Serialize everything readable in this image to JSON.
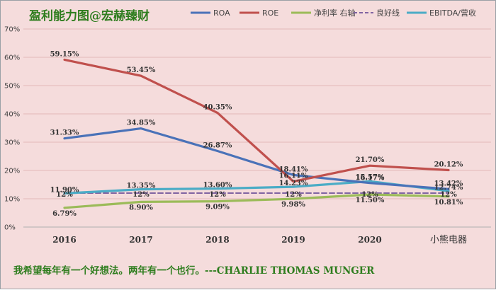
{
  "chart_data": {
    "type": "line",
    "title": "盈利能力图@宏赫臻财",
    "categories": [
      "2016",
      "2017",
      "2018",
      "2019",
      "2020",
      "小熊电器"
    ],
    "ylim": [
      0,
      70
    ],
    "yticks": [
      "0%",
      "10%",
      "20%",
      "30%",
      "40%",
      "50%",
      "60%",
      "70%"
    ],
    "grid": true,
    "legend_position": "top-right",
    "series": [
      {
        "name": "ROA",
        "color": "#4a72b8",
        "style": "solid",
        "values": [
          31.33,
          34.85,
          26.87,
          18.41,
          15.57,
          13.42
        ],
        "labels": [
          "31.33%",
          "34.85%",
          "26.87%",
          "18.41%",
          "15.57%",
          "13.42%"
        ]
      },
      {
        "name": "ROE",
        "color": "#c0504d",
        "style": "solid",
        "values": [
          59.15,
          53.45,
          40.35,
          16.11,
          21.7,
          20.12
        ],
        "labels": [
          "59.15%",
          "53.45%",
          "40.35%",
          "16.11%",
          "21.70%",
          "20.12%"
        ]
      },
      {
        "name": "净利率 右轴",
        "color": "#9bbb59",
        "style": "solid",
        "values": [
          6.79,
          8.9,
          9.09,
          9.98,
          11.5,
          10.81
        ],
        "labels": [
          "6.79%",
          "8.90%",
          "9.09%",
          "9.98%",
          "11.50%",
          "10.81%"
        ]
      },
      {
        "name": "良好线",
        "color": "#8064a2",
        "style": "dashed",
        "values": [
          12,
          12,
          12,
          12,
          12,
          12
        ],
        "labels": [
          "12%",
          "12%",
          "12%",
          "12%",
          "12%",
          "12%"
        ]
      },
      {
        "name": "EBITDA/营收",
        "color": "#4bacc6",
        "style": "solid",
        "values": [
          11.9,
          13.35,
          13.6,
          14.23,
          16.17,
          12.74
        ],
        "labels": [
          "11.90%",
          "13.35%",
          "13.60%",
          "14.23%",
          "16.17%",
          "12.74%"
        ]
      }
    ],
    "annotation": "我希望每年有一个好想法。两年有一个也行。---CHARLIE THOMAS MUNGER"
  }
}
